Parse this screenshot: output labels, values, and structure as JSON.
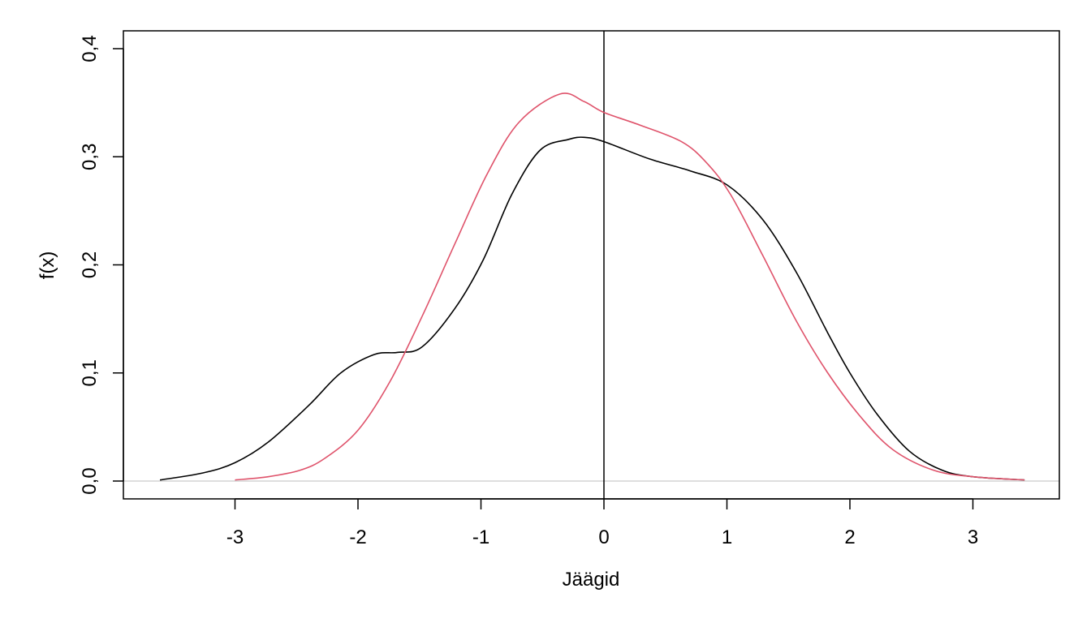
{
  "chart_data": {
    "type": "line",
    "title": "",
    "xlabel": "Jäägid",
    "ylabel": "f(x)",
    "xlim": [
      -3.8,
      3.8
    ],
    "ylim": [
      -0.016,
      0.416
    ],
    "xticks": [
      -3,
      -2,
      -1,
      0,
      1,
      2,
      3
    ],
    "xtick_labels": [
      "-3",
      "-2",
      "-1",
      "0",
      "1",
      "2",
      "3"
    ],
    "yticks": [
      0,
      0.1,
      0.2,
      0.3,
      0.4
    ],
    "ytick_labels": [
      "0,0",
      "0,1",
      "0,2",
      "0,3",
      "0,4"
    ],
    "grid": false,
    "reference_lines": {
      "vertical_x": 0,
      "horizontal_y": 0
    },
    "series": [
      {
        "name": "density-black",
        "color": "#000000",
        "x": [
          -3.61,
          -3.26,
          -3.0,
          -2.73,
          -2.4,
          -2.14,
          -1.87,
          -1.68,
          -1.48,
          -1.21,
          -0.98,
          -0.75,
          -0.52,
          -0.29,
          -0.16,
          0,
          0.37,
          0.7,
          1.0,
          1.29,
          1.56,
          1.82,
          2.0,
          2.22,
          2.48,
          2.75,
          3.0,
          3.42
        ],
        "y": [
          0.001,
          0.0075,
          0.017,
          0.036,
          0.07,
          0.1,
          0.117,
          0.119,
          0.124,
          0.16,
          0.205,
          0.265,
          0.306,
          0.316,
          0.318,
          0.314,
          0.298,
          0.287,
          0.274,
          0.242,
          0.194,
          0.137,
          0.1,
          0.062,
          0.028,
          0.01,
          0.004,
          0.001
        ]
      },
      {
        "name": "density-red",
        "color": "#DF536B",
        "x": [
          -3.0,
          -2.73,
          -2.47,
          -2.27,
          -2.0,
          -1.74,
          -1.48,
          -1.21,
          -0.95,
          -0.69,
          -0.36,
          -0.16,
          0,
          0.3,
          0.63,
          0.83,
          1.03,
          1.29,
          1.56,
          1.82,
          2.09,
          2.35,
          2.68,
          3.0,
          3.42
        ],
        "y": [
          0.001,
          0.004,
          0.01,
          0.021,
          0.047,
          0.092,
          0.152,
          0.22,
          0.284,
          0.332,
          0.358,
          0.351,
          0.341,
          0.329,
          0.314,
          0.295,
          0.265,
          0.209,
          0.149,
          0.1,
          0.059,
          0.029,
          0.01,
          0.004,
          0.001
        ]
      }
    ]
  }
}
